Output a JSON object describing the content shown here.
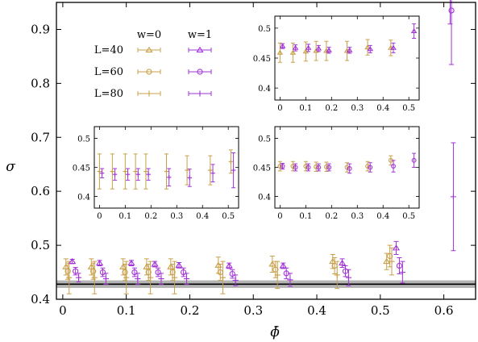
{
  "chart_data": {
    "type": "scatter",
    "xlabel": "ϕ̄",
    "ylabel": "σ",
    "xlim": [
      -0.01,
      0.65
    ],
    "ylim": [
      0.4,
      0.95
    ],
    "xticks": [
      "0",
      "0.1",
      "0.2",
      "0.3",
      "0.4",
      "0.5",
      "0.6"
    ],
    "yticks": [
      "0.4",
      "0.5",
      "0.6",
      "0.7",
      "0.8",
      "0.9"
    ],
    "grid": false,
    "reference_band": {
      "center": 0.428,
      "low": 0.421,
      "high": 0.435
    },
    "legend": {
      "placement": "top-left",
      "column_headers": [
        "w=0",
        "w=1"
      ],
      "row_labels": [
        "L=40",
        "L=60",
        "L=80"
      ]
    },
    "colors": {
      "w0": "#c8a04a",
      "w1": "#a234d8",
      "band": "#b4b4b4",
      "line": "#000000"
    },
    "series": [
      {
        "w": 0,
        "L": 40,
        "marker": "triangle",
        "x": [
          0.005,
          0.045,
          0.095,
          0.132,
          0.17,
          0.245,
          0.33,
          0.425,
          0.51
        ],
        "y": [
          0.46,
          0.46,
          0.46,
          0.46,
          0.46,
          0.463,
          0.465,
          0.47,
          0.47
        ],
        "err": [
          0.015,
          0.015,
          0.015,
          0.015,
          0.015,
          0.015,
          0.015,
          0.013,
          0.015
        ]
      },
      {
        "w": 0,
        "L": 60,
        "marker": "circle",
        "x": [
          0.008,
          0.048,
          0.098,
          0.135,
          0.173,
          0.248,
          0.335,
          0.428,
          0.515
        ],
        "y": [
          0.452,
          0.452,
          0.45,
          0.45,
          0.45,
          0.45,
          0.455,
          0.462,
          0.48
        ],
        "err": [
          0.015,
          0.015,
          0.015,
          0.015,
          0.015,
          0.015,
          0.015,
          0.015,
          0.02
        ]
      },
      {
        "w": 0,
        "L": 80,
        "marker": "plus",
        "x": [
          0.01,
          0.05,
          0.1,
          0.138,
          0.176,
          0.252,
          0.338,
          0.432,
          0.518
        ],
        "y": [
          0.44,
          0.44,
          0.44,
          0.44,
          0.44,
          0.44,
          0.445,
          0.445,
          0.47
        ],
        "err": [
          0.03,
          0.03,
          0.03,
          0.03,
          0.03,
          0.03,
          0.025,
          0.025,
          0.025
        ]
      },
      {
        "w": 1,
        "L": 40,
        "marker": "triangle",
        "x": [
          0.015,
          0.058,
          0.108,
          0.145,
          0.183,
          0.262,
          0.347,
          0.44,
          0.525,
          0.61
        ],
        "y": [
          0.47,
          0.467,
          0.467,
          0.465,
          0.463,
          0.462,
          0.462,
          0.467,
          0.495,
          0.96
        ],
        "err": [
          0.004,
          0.005,
          0.005,
          0.005,
          0.005,
          0.005,
          0.005,
          0.008,
          0.012,
          0.05
        ]
      },
      {
        "w": 1,
        "L": 60,
        "marker": "circle",
        "x": [
          0.02,
          0.063,
          0.113,
          0.15,
          0.19,
          0.267,
          0.352,
          0.445,
          0.53,
          0.612
        ],
        "y": [
          0.452,
          0.45,
          0.45,
          0.45,
          0.45,
          0.447,
          0.448,
          0.452,
          0.462,
          0.935
        ],
        "err": [
          0.007,
          0.008,
          0.008,
          0.008,
          0.008,
          0.008,
          0.01,
          0.01,
          0.015,
          0.1
        ]
      },
      {
        "w": 1,
        "L": 80,
        "marker": "plus",
        "x": [
          0.025,
          0.068,
          0.118,
          0.155,
          0.195,
          0.272,
          0.358,
          0.45,
          0.535,
          0.615
        ],
        "y": [
          0.44,
          0.438,
          0.438,
          0.438,
          0.438,
          0.435,
          0.436,
          0.44,
          0.45,
          0.59
        ],
        "err": [
          0.008,
          0.01,
          0.01,
          0.01,
          0.01,
          0.01,
          0.012,
          0.015,
          0.02,
          0.1
        ]
      }
    ],
    "insets": [
      {
        "name": "triangle",
        "placement": "top-right",
        "xlim": [
          -0.02,
          0.54
        ],
        "ylim": [
          0.38,
          0.52
        ],
        "xticks": [
          "0",
          "0.1",
          "0.2",
          "0.3",
          "0.4",
          "0.5"
        ],
        "yticks": [
          "0.4",
          "0.45",
          "0.5"
        ],
        "w0": {
          "x": [
            0.0,
            0.05,
            0.1,
            0.14,
            0.18,
            0.26,
            0.34,
            0.43
          ],
          "y": [
            0.459,
            0.459,
            0.461,
            0.462,
            0.462,
            0.462,
            0.468,
            0.467
          ],
          "err": [
            0.016,
            0.016,
            0.016,
            0.016,
            0.016,
            0.016,
            0.013,
            0.013
          ]
        },
        "w1": {
          "x": [
            0.01,
            0.06,
            0.11,
            0.15,
            0.19,
            0.27,
            0.35,
            0.44,
            0.52
          ],
          "y": [
            0.47,
            0.467,
            0.467,
            0.466,
            0.463,
            0.463,
            0.465,
            0.467,
            0.495
          ],
          "err": [
            0.004,
            0.005,
            0.006,
            0.005,
            0.005,
            0.005,
            0.006,
            0.008,
            0.012
          ]
        }
      },
      {
        "name": "plus",
        "placement": "middle-left",
        "xlim": [
          -0.02,
          0.54
        ],
        "ylim": [
          0.38,
          0.52
        ],
        "xticks": [
          "0",
          "0.1",
          "0.2",
          "0.3",
          "0.4",
          "0.5"
        ],
        "yticks": [
          "0.4",
          "0.45",
          "0.5"
        ],
        "w0": {
          "x": [
            0.0,
            0.05,
            0.1,
            0.14,
            0.18,
            0.26,
            0.34,
            0.43,
            0.51
          ],
          "y": [
            0.443,
            0.443,
            0.443,
            0.443,
            0.443,
            0.443,
            0.445,
            0.445,
            0.46
          ],
          "err": [
            0.03,
            0.03,
            0.03,
            0.03,
            0.03,
            0.03,
            0.025,
            0.025,
            0.02
          ]
        },
        "w1": {
          "x": [
            0.01,
            0.06,
            0.11,
            0.15,
            0.19,
            0.27,
            0.35,
            0.44,
            0.52
          ],
          "y": [
            0.44,
            0.438,
            0.438,
            0.438,
            0.438,
            0.433,
            0.432,
            0.44,
            0.445
          ],
          "err": [
            0.008,
            0.01,
            0.01,
            0.01,
            0.01,
            0.015,
            0.015,
            0.015,
            0.03
          ]
        }
      },
      {
        "name": "circle",
        "placement": "middle-right",
        "xlim": [
          -0.02,
          0.54
        ],
        "ylim": [
          0.38,
          0.52
        ],
        "xticks": [
          "0",
          "0.1",
          "0.2",
          "0.3",
          "0.4",
          "0.5"
        ],
        "yticks": [
          "0.4",
          "0.45",
          "0.5"
        ],
        "w0": {
          "x": [
            0.0,
            0.05,
            0.1,
            0.14,
            0.18,
            0.26,
            0.34,
            0.43
          ],
          "y": [
            0.452,
            0.452,
            0.452,
            0.451,
            0.451,
            0.45,
            0.452,
            0.462
          ],
          "err": [
            0.008,
            0.008,
            0.008,
            0.008,
            0.008,
            0.008,
            0.008,
            0.008
          ]
        },
        "w1": {
          "x": [
            0.01,
            0.06,
            0.11,
            0.15,
            0.19,
            0.27,
            0.35,
            0.44,
            0.52
          ],
          "y": [
            0.452,
            0.45,
            0.45,
            0.45,
            0.45,
            0.448,
            0.45,
            0.452,
            0.462
          ],
          "err": [
            0.005,
            0.006,
            0.006,
            0.006,
            0.006,
            0.008,
            0.008,
            0.01,
            0.012
          ]
        }
      }
    ]
  }
}
